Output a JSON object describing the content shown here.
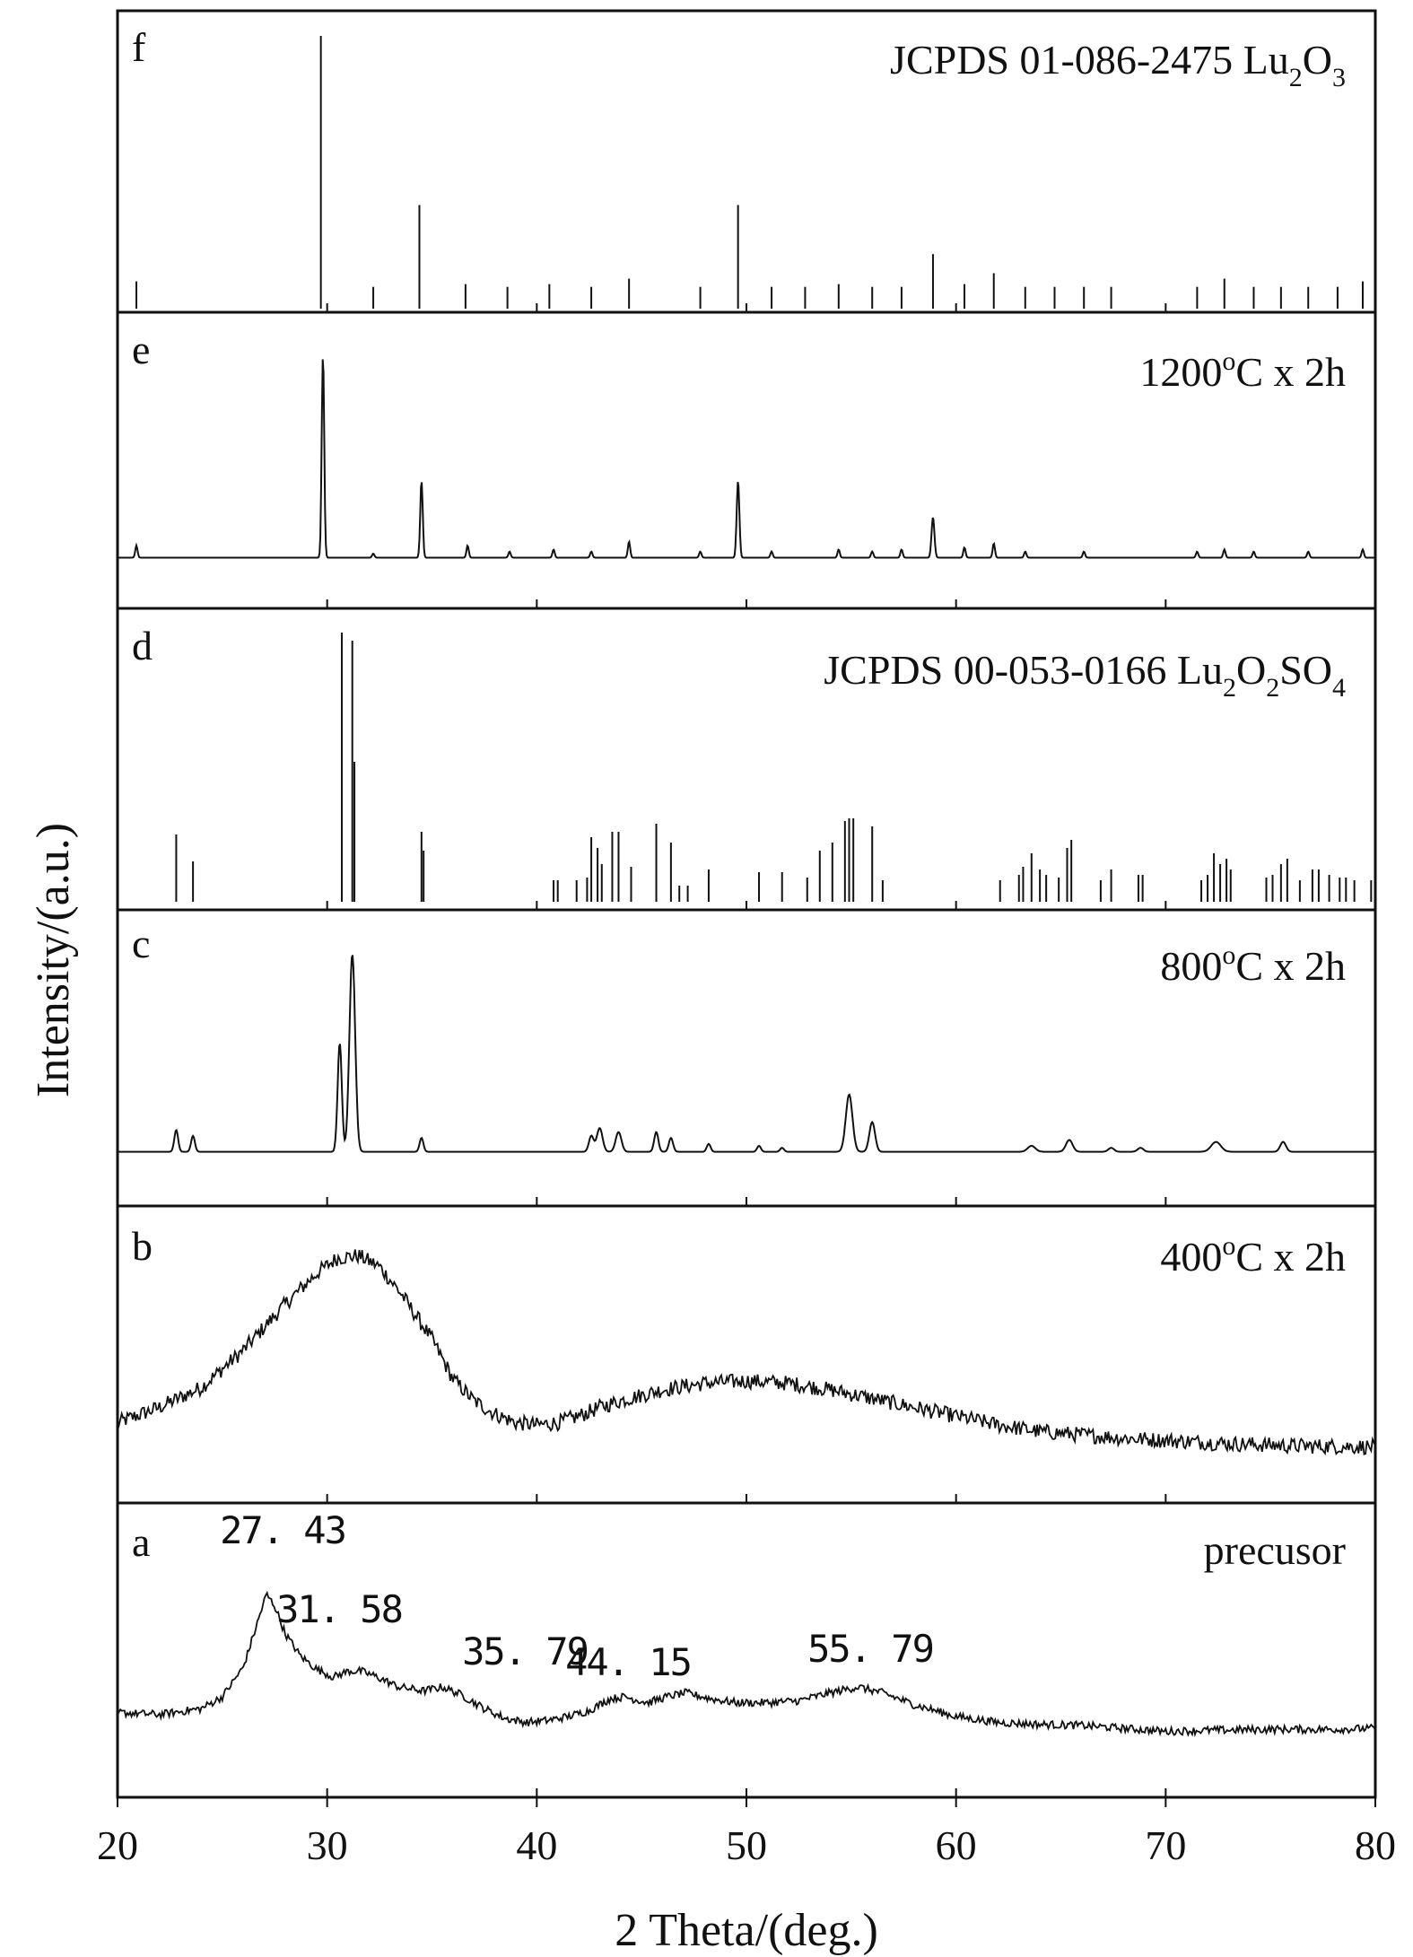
{
  "chart_data": {
    "type": "line",
    "xlabel": "2 Theta/(deg.)",
    "ylabel": "Intensity/(a.u.)",
    "xlim": [
      20,
      80
    ],
    "xticks": [
      20,
      30,
      40,
      50,
      60,
      70,
      80
    ],
    "grid": false,
    "panels": [
      {
        "letter": "f",
        "label": {
          "main": "JCPDS 01-086-2475 Lu",
          "parts": [
            {
              "t": "2",
              "sub": true
            },
            {
              "t": "O"
            },
            {
              "t": "3",
              "sub": true
            }
          ]
        },
        "type": "stick",
        "peaks": [
          [
            20.9,
            0.1
          ],
          [
            29.7,
            1.0
          ],
          [
            32.2,
            0.08
          ],
          [
            34.4,
            0.38
          ],
          [
            36.6,
            0.09
          ],
          [
            38.6,
            0.08
          ],
          [
            40.6,
            0.09
          ],
          [
            42.6,
            0.08
          ],
          [
            44.4,
            0.11
          ],
          [
            47.8,
            0.08
          ],
          [
            49.6,
            0.38
          ],
          [
            51.2,
            0.08
          ],
          [
            52.8,
            0.08
          ],
          [
            54.4,
            0.09
          ],
          [
            56.0,
            0.08
          ],
          [
            57.4,
            0.08
          ],
          [
            58.9,
            0.2
          ],
          [
            60.4,
            0.09
          ],
          [
            61.8,
            0.13
          ],
          [
            63.3,
            0.08
          ],
          [
            64.7,
            0.08
          ],
          [
            66.1,
            0.08
          ],
          [
            67.4,
            0.08
          ],
          [
            71.5,
            0.08
          ],
          [
            72.8,
            0.11
          ],
          [
            74.2,
            0.08
          ],
          [
            75.5,
            0.08
          ],
          [
            76.8,
            0.08
          ],
          [
            78.2,
            0.08
          ],
          [
            79.4,
            0.1
          ]
        ]
      },
      {
        "letter": "e",
        "label": {
          "main": "1200",
          "parts": [
            {
              "t": "o",
              "sup": true
            },
            {
              "t": "C x 2h"
            }
          ]
        },
        "type": "peaks",
        "baseline": 0.02,
        "peaks": [
          [
            20.9,
            0.06,
            0.12
          ],
          [
            29.8,
            1.0,
            0.13
          ],
          [
            32.2,
            0.02,
            0.12
          ],
          [
            34.5,
            0.38,
            0.13
          ],
          [
            36.7,
            0.06,
            0.12
          ],
          [
            38.7,
            0.03,
            0.12
          ],
          [
            40.8,
            0.04,
            0.12
          ],
          [
            42.6,
            0.03,
            0.12
          ],
          [
            44.4,
            0.08,
            0.12
          ],
          [
            47.8,
            0.03,
            0.12
          ],
          [
            49.6,
            0.38,
            0.14
          ],
          [
            51.2,
            0.03,
            0.12
          ],
          [
            54.4,
            0.04,
            0.12
          ],
          [
            56.0,
            0.03,
            0.12
          ],
          [
            57.4,
            0.04,
            0.12
          ],
          [
            58.9,
            0.2,
            0.15
          ],
          [
            60.4,
            0.05,
            0.12
          ],
          [
            61.8,
            0.07,
            0.12
          ],
          [
            63.3,
            0.03,
            0.12
          ],
          [
            66.1,
            0.03,
            0.12
          ],
          [
            71.5,
            0.03,
            0.12
          ],
          [
            72.8,
            0.04,
            0.12
          ],
          [
            74.2,
            0.03,
            0.12
          ],
          [
            76.8,
            0.03,
            0.12
          ],
          [
            79.4,
            0.04,
            0.12
          ]
        ]
      },
      {
        "letter": "d",
        "label": {
          "main": "JCPDS 00-053-0166 Lu",
          "parts": [
            {
              "t": "2",
              "sub": true
            },
            {
              "t": "O"
            },
            {
              "t": "2",
              "sub": true
            },
            {
              "t": "SO"
            },
            {
              "t": "4",
              "sub": true
            }
          ]
        },
        "type": "stick",
        "peaks": [
          [
            22.8,
            0.25
          ],
          [
            23.6,
            0.15
          ],
          [
            30.7,
            1.0
          ],
          [
            31.2,
            0.97
          ],
          [
            31.3,
            0.52
          ],
          [
            34.5,
            0.26
          ],
          [
            34.6,
            0.19
          ],
          [
            40.8,
            0.08
          ],
          [
            41.0,
            0.08
          ],
          [
            41.9,
            0.08
          ],
          [
            42.4,
            0.09
          ],
          [
            42.6,
            0.24
          ],
          [
            42.9,
            0.2
          ],
          [
            43.1,
            0.14
          ],
          [
            43.6,
            0.26
          ],
          [
            43.9,
            0.26
          ],
          [
            44.5,
            0.13
          ],
          [
            45.7,
            0.29
          ],
          [
            46.4,
            0.22
          ],
          [
            46.8,
            0.06
          ],
          [
            47.2,
            0.06
          ],
          [
            48.2,
            0.12
          ],
          [
            50.6,
            0.11
          ],
          [
            51.7,
            0.11
          ],
          [
            52.9,
            0.09
          ],
          [
            53.5,
            0.19
          ],
          [
            54.1,
            0.22
          ],
          [
            54.7,
            0.3
          ],
          [
            54.9,
            0.31
          ],
          [
            55.1,
            0.31
          ],
          [
            56.0,
            0.28
          ],
          [
            56.5,
            0.08
          ],
          [
            62.1,
            0.08
          ],
          [
            63.0,
            0.1
          ],
          [
            63.2,
            0.13
          ],
          [
            63.6,
            0.18
          ],
          [
            64.0,
            0.12
          ],
          [
            64.3,
            0.1
          ],
          [
            64.9,
            0.09
          ],
          [
            65.3,
            0.2
          ],
          [
            65.5,
            0.23
          ],
          [
            66.9,
            0.08
          ],
          [
            67.4,
            0.12
          ],
          [
            68.7,
            0.1
          ],
          [
            68.9,
            0.1
          ],
          [
            71.7,
            0.08
          ],
          [
            72.0,
            0.1
          ],
          [
            72.3,
            0.18
          ],
          [
            72.6,
            0.14
          ],
          [
            72.9,
            0.16
          ],
          [
            73.1,
            0.12
          ],
          [
            74.8,
            0.09
          ],
          [
            75.1,
            0.1
          ],
          [
            75.5,
            0.14
          ],
          [
            75.8,
            0.16
          ],
          [
            76.4,
            0.08
          ],
          [
            77.0,
            0.12
          ],
          [
            77.3,
            0.12
          ],
          [
            77.8,
            0.1
          ],
          [
            78.3,
            0.09
          ],
          [
            78.6,
            0.09
          ],
          [
            79.0,
            0.08
          ],
          [
            79.8,
            0.08
          ]
        ]
      },
      {
        "letter": "c",
        "label": {
          "main": "800",
          "parts": [
            {
              "t": "o",
              "sup": true
            },
            {
              "t": "C x 2h"
            }
          ]
        },
        "type": "peaks",
        "baseline": 0.02,
        "peaks": [
          [
            22.8,
            0.11,
            0.2
          ],
          [
            23.6,
            0.08,
            0.2
          ],
          [
            30.6,
            0.55,
            0.22
          ],
          [
            31.2,
            1.0,
            0.3
          ],
          [
            34.5,
            0.07,
            0.2
          ],
          [
            42.6,
            0.08,
            0.25
          ],
          [
            43.0,
            0.12,
            0.3
          ],
          [
            43.9,
            0.1,
            0.3
          ],
          [
            45.7,
            0.1,
            0.22
          ],
          [
            46.4,
            0.07,
            0.22
          ],
          [
            48.2,
            0.04,
            0.2
          ],
          [
            50.6,
            0.03,
            0.2
          ],
          [
            51.7,
            0.02,
            0.2
          ],
          [
            54.9,
            0.29,
            0.35
          ],
          [
            56.0,
            0.15,
            0.3
          ],
          [
            63.6,
            0.03,
            0.4
          ],
          [
            65.4,
            0.06,
            0.35
          ],
          [
            67.4,
            0.02,
            0.3
          ],
          [
            68.8,
            0.02,
            0.3
          ],
          [
            72.4,
            0.05,
            0.5
          ],
          [
            75.6,
            0.05,
            0.3
          ]
        ]
      },
      {
        "letter": "b",
        "label": {
          "main": "400",
          "parts": [
            {
              "t": "o",
              "sup": true
            },
            {
              "t": "C x 2h"
            }
          ]
        },
        "type": "noisy",
        "noise": 0.035,
        "profile": [
          [
            20,
            0.12
          ],
          [
            22,
            0.19
          ],
          [
            24,
            0.28
          ],
          [
            26,
            0.45
          ],
          [
            28,
            0.66
          ],
          [
            29.5,
            0.8
          ],
          [
            30.5,
            0.87
          ],
          [
            31.5,
            0.88
          ],
          [
            32.5,
            0.83
          ],
          [
            33.5,
            0.71
          ],
          [
            35,
            0.5
          ],
          [
            36,
            0.32
          ],
          [
            37,
            0.22
          ],
          [
            38,
            0.16
          ],
          [
            39,
            0.12
          ],
          [
            40,
            0.11
          ],
          [
            41,
            0.12
          ],
          [
            42,
            0.15
          ],
          [
            43,
            0.19
          ],
          [
            44,
            0.22
          ],
          [
            46,
            0.27
          ],
          [
            48,
            0.3
          ],
          [
            50,
            0.31
          ],
          [
            52,
            0.3
          ],
          [
            54,
            0.27
          ],
          [
            56,
            0.23
          ],
          [
            58,
            0.19
          ],
          [
            60,
            0.15
          ],
          [
            62,
            0.11
          ],
          [
            64,
            0.08
          ],
          [
            66,
            0.065
          ],
          [
            68,
            0.05
          ],
          [
            70,
            0.04
          ],
          [
            73,
            0.025
          ],
          [
            76,
            0.015
          ],
          [
            80,
            0.01
          ]
        ]
      },
      {
        "letter": "a",
        "label": {
          "main": "precusor",
          "parts": []
        },
        "type": "noisy",
        "noise": 0.02,
        "profile": [
          [
            20,
            0.12
          ],
          [
            22,
            0.11
          ],
          [
            24,
            0.14
          ],
          [
            25,
            0.2
          ],
          [
            26,
            0.35
          ],
          [
            26.6,
            0.55
          ],
          [
            27.1,
            0.72
          ],
          [
            27.5,
            0.66
          ],
          [
            28,
            0.52
          ],
          [
            28.7,
            0.41
          ],
          [
            29.5,
            0.34
          ],
          [
            30.3,
            0.3
          ],
          [
            31.0,
            0.33
          ],
          [
            31.6,
            0.33
          ],
          [
            32.4,
            0.3
          ],
          [
            33.4,
            0.25
          ],
          [
            34.6,
            0.23
          ],
          [
            35.5,
            0.25
          ],
          [
            36.4,
            0.21
          ],
          [
            37.5,
            0.14
          ],
          [
            38.5,
            0.09
          ],
          [
            39.5,
            0.07
          ],
          [
            40.5,
            0.08
          ],
          [
            41.5,
            0.1
          ],
          [
            42.5,
            0.13
          ],
          [
            43.5,
            0.19
          ],
          [
            44.2,
            0.2
          ],
          [
            45.3,
            0.17
          ],
          [
            46.2,
            0.2
          ],
          [
            47.1,
            0.22
          ],
          [
            48.3,
            0.19
          ],
          [
            49.5,
            0.17
          ],
          [
            51,
            0.17
          ],
          [
            52.5,
            0.18
          ],
          [
            54,
            0.22
          ],
          [
            55.3,
            0.25
          ],
          [
            56.5,
            0.22
          ],
          [
            58,
            0.16
          ],
          [
            60,
            0.1
          ],
          [
            62,
            0.07
          ],
          [
            64,
            0.06
          ],
          [
            66,
            0.055
          ],
          [
            68,
            0.04
          ],
          [
            70,
            0.025
          ],
          [
            72,
            0.03
          ],
          [
            75,
            0.035
          ],
          [
            78,
            0.035
          ],
          [
            80,
            0.04
          ]
        ]
      }
    ],
    "annotations": [
      {
        "text": "27. 43",
        "x": 27.43
      },
      {
        "text": "31. 58",
        "x": 31.58
      },
      {
        "text": "35. 79",
        "x": 35.79
      },
      {
        "text": "44. 15",
        "x": 44.15
      },
      {
        "text": "55. 79",
        "x": 55.79
      }
    ]
  }
}
